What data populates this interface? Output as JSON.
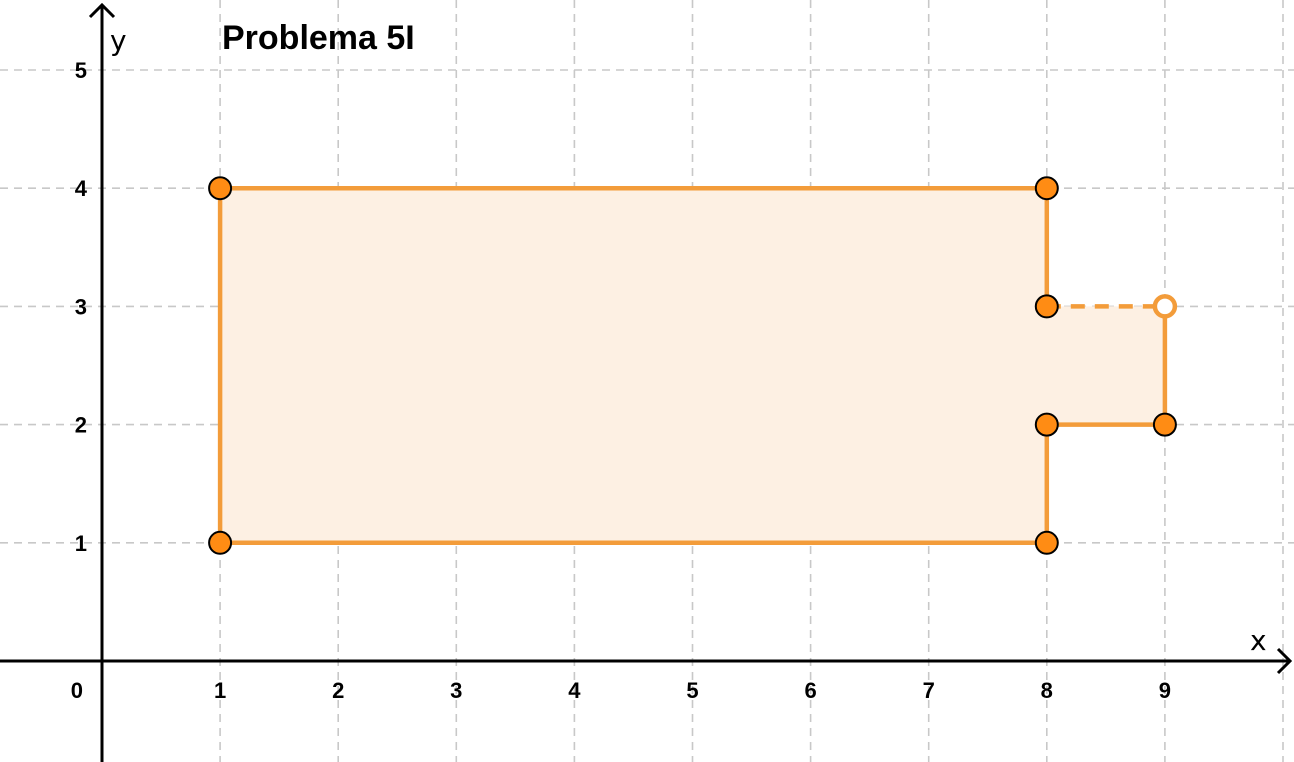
{
  "title": "Problema 5I",
  "axes": {
    "x_label": "x",
    "y_label": "y",
    "origin_label": "0",
    "x_ticks": [
      "1",
      "2",
      "3",
      "4",
      "5",
      "6",
      "7",
      "8",
      "9"
    ],
    "y_ticks": [
      "1",
      "2",
      "3",
      "4",
      "5"
    ],
    "x_range": [
      -0.85,
      10.1
    ],
    "y_range": [
      -0.85,
      5.6
    ],
    "grid": true
  },
  "colors": {
    "shape_stroke": "#f39c3a",
    "shape_fill": "#fdf0e3",
    "point_fill": "#ff8c14",
    "point_stroke": "#000000",
    "open_point_stroke": "#f39c3a",
    "grid": "#c8c8c8",
    "axis": "#000000"
  },
  "figure": {
    "polygon": [
      [
        1,
        1
      ],
      [
        1,
        4
      ],
      [
        8,
        4
      ],
      [
        8,
        3
      ],
      [
        9,
        3
      ],
      [
        9,
        2
      ],
      [
        8,
        2
      ],
      [
        8,
        1
      ]
    ],
    "solid_edges": [
      [
        [
          1,
          1
        ],
        [
          1,
          4
        ]
      ],
      [
        [
          1,
          4
        ],
        [
          8,
          4
        ]
      ],
      [
        [
          8,
          4
        ],
        [
          8,
          3
        ]
      ],
      [
        [
          9,
          3
        ],
        [
          9,
          2
        ]
      ],
      [
        [
          9,
          2
        ],
        [
          8,
          2
        ]
      ],
      [
        [
          8,
          2
        ],
        [
          8,
          1
        ]
      ],
      [
        [
          8,
          1
        ],
        [
          1,
          1
        ]
      ]
    ],
    "dashed_edges": [
      [
        [
          8,
          3
        ],
        [
          9,
          3
        ]
      ]
    ],
    "points": [
      [
        1,
        4
      ],
      [
        8,
        4
      ],
      [
        8,
        3
      ],
      [
        8,
        2
      ],
      [
        9,
        2
      ],
      [
        8,
        1
      ],
      [
        1,
        1
      ]
    ],
    "open_points": [
      [
        9,
        3
      ]
    ]
  }
}
